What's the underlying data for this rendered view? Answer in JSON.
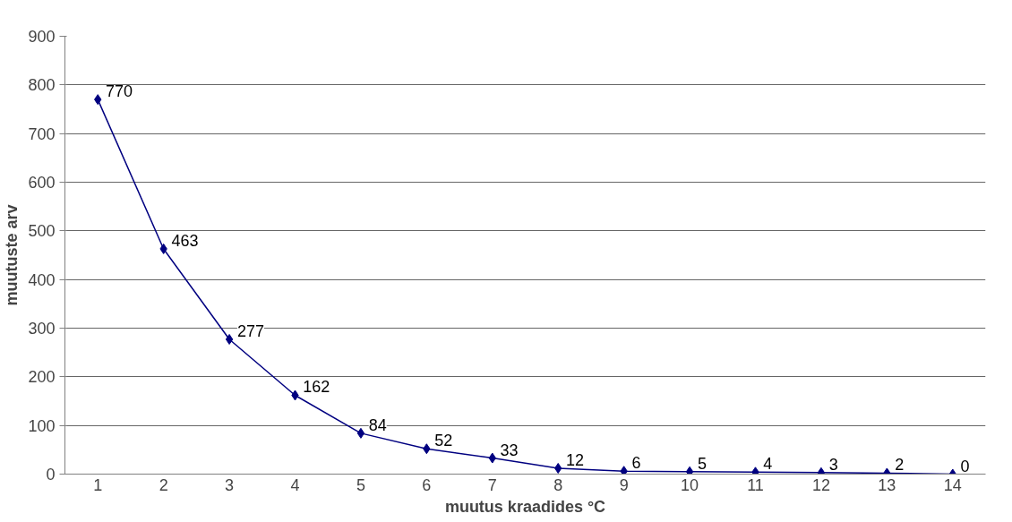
{
  "chart_data": {
    "type": "line",
    "xlabel": "muutus kraadides °C",
    "ylabel": "muutuste arv",
    "categories": [
      "1",
      "2",
      "3",
      "4",
      "5",
      "6",
      "7",
      "8",
      "9",
      "10",
      "11",
      "12",
      "13",
      "14"
    ],
    "series": [
      {
        "color": "#000080",
        "values": [
          770,
          463,
          277,
          162,
          84,
          52,
          33,
          12,
          6,
          5,
          4,
          3,
          2,
          0
        ]
      }
    ],
    "ylim": [
      0,
      900
    ],
    "yticks": [
      0,
      100,
      200,
      300,
      400,
      500,
      600,
      700,
      800,
      900
    ],
    "grid": "y",
    "marker": "diamond",
    "line_style": "solid",
    "data_labels": true
  }
}
